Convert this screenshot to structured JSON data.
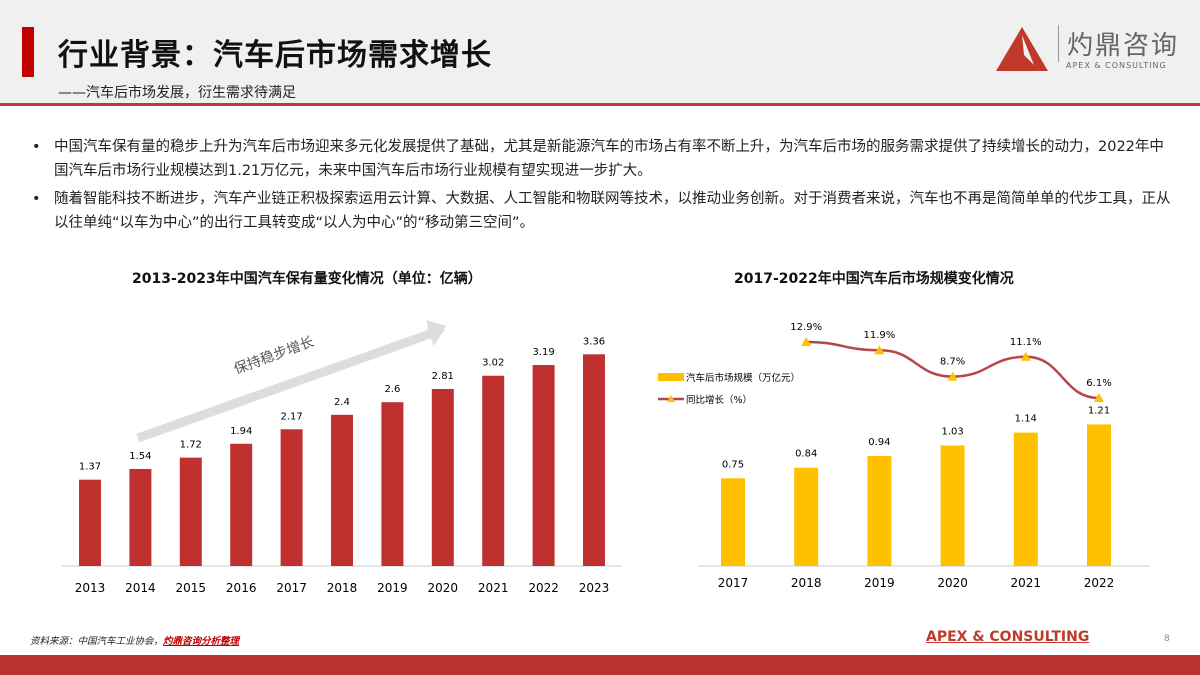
{
  "header": {
    "title": "行业背景：汽车后市场需求增长",
    "subtitle": "——汽车后市场发展，衍生需求待满足",
    "logo_cn": "灼鼎咨询",
    "logo_en": "APEX & CONSULTING"
  },
  "bullets": [
    "中国汽车保有量的稳步上升为汽车后市场迎来多元化发展提供了基础，尤其是新能源汽车的市场占有率不断上升，为汽车后市场的服务需求提供了持续增长的动力，2022年中国汽车后市场行业规模达到1.21万亿元，未来中国汽车后市场行业规模有望实现进一步扩大。",
    "随着智能科技不断进步，汽车产业链正积极探索运用云计算、大数据、人工智能和物联网等技术，以推动业务创新。对于消费者来说，汽车也不再是简简单单的代步工具，正从以往单纯“以车为中心”的出行工具转变成“以人为中心”的“移动第三空间”。"
  ],
  "chart_data": [
    {
      "type": "bar",
      "title": "2013-2023年中国汽车保有量变化情况（单位：亿辆）",
      "categories": [
        "2013",
        "2014",
        "2015",
        "2016",
        "2017",
        "2018",
        "2019",
        "2020",
        "2021",
        "2022",
        "2023"
      ],
      "values": [
        1.37,
        1.54,
        1.72,
        1.94,
        2.17,
        2.4,
        2.6,
        2.81,
        3.02,
        3.19,
        3.36
      ],
      "annotation": "保持稳步增长",
      "color": "#c0302e",
      "ylim": [
        0,
        3.5
      ]
    },
    {
      "type": "bar+line",
      "title": "2017-2022年中国汽车后市场规模变化情况",
      "categories": [
        "2017",
        "2018",
        "2019",
        "2020",
        "2021",
        "2022"
      ],
      "series": [
        {
          "name": "汽车后市场规模（万亿元）",
          "type": "bar",
          "values": [
            0.75,
            0.84,
            0.94,
            1.03,
            1.14,
            1.21
          ],
          "color": "#ffc000"
        },
        {
          "name": "同比增长（%）",
          "type": "line",
          "values": [
            null,
            12.9,
            11.9,
            8.7,
            11.1,
            6.1
          ],
          "labels": [
            "",
            "12.9%",
            "11.9%",
            "8.7%",
            "11.1%",
            "6.1%"
          ],
          "color": "#b5474a",
          "marker_color": "#ffc000"
        }
      ],
      "legend": "left"
    }
  ],
  "footer": {
    "source_prefix": "资料来源：中国汽车工业协会，",
    "source_link": "灼鼎咨询分析整理",
    "brand": "APEX & CONSULTING",
    "page": "8"
  }
}
